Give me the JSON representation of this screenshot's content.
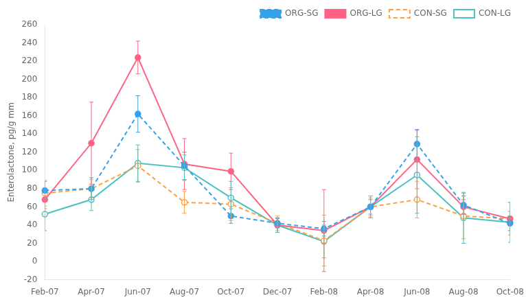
{
  "chart_data": {
    "type": "line",
    "categories": [
      "Feb-07",
      "Apr-07",
      "Jun-07",
      "Aug-07",
      "Oct-07",
      "Dec-07",
      "Feb-08",
      "Apr-08",
      "Jun-08",
      "Aug-08",
      "Oct-08"
    ],
    "series": [
      {
        "name": "ORG-SG",
        "values": [
          78,
          80,
          162,
          105,
          50,
          42,
          36,
          60,
          129,
          62,
          42
        ],
        "errors": [
          10,
          12,
          20,
          15,
          8,
          5,
          8,
          8,
          16,
          10,
          8
        ],
        "marker": "circle",
        "line_style": "dashed"
      },
      {
        "name": "ORG-LG",
        "values": [
          68,
          130,
          224,
          107,
          99,
          40,
          34,
          60,
          112,
          60,
          47
        ],
        "errors": [
          10,
          45,
          18,
          28,
          20,
          8,
          45,
          12,
          32,
          8,
          8
        ],
        "marker": "circle",
        "line_style": "solid"
      },
      {
        "name": "CON-SG",
        "values": [
          75,
          80,
          105,
          65,
          63,
          42,
          23,
          60,
          68,
          50,
          47
        ],
        "errors": [
          14,
          10,
          18,
          12,
          18,
          8,
          28,
          10,
          20,
          25,
          18
        ],
        "marker": "open_circle",
        "line_style": "dashed"
      },
      {
        "name": "CON-LG",
        "values": [
          52,
          68,
          108,
          103,
          70,
          40,
          22,
          60,
          95,
          48,
          43
        ],
        "errors": [
          18,
          12,
          20,
          14,
          18,
          8,
          18,
          12,
          42,
          28,
          22
        ],
        "marker": "open_circle",
        "line_style": "solid"
      }
    ],
    "ylabel": "Enterolactone, pg/g mm",
    "ylim": [
      -20,
      260
    ],
    "yticks": [
      -20,
      0,
      20,
      40,
      60,
      80,
      100,
      120,
      140,
      160,
      180,
      200,
      220,
      240,
      260
    ],
    "grid": false,
    "legend": "upper right"
  }
}
